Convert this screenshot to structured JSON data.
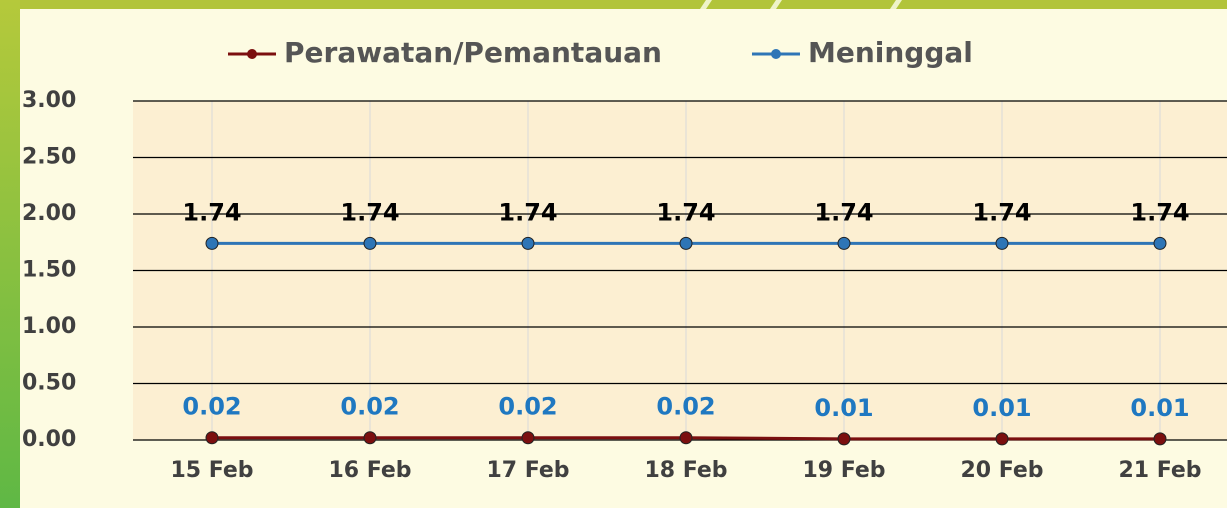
{
  "chart_data": {
    "type": "line",
    "categories": [
      "15 Feb",
      "16 Feb",
      "17 Feb",
      "18 Feb",
      "19 Feb",
      "20 Feb",
      "21 Feb"
    ],
    "series": [
      {
        "name": "Perawatan/Pemantauan",
        "color": "#7b0f0f",
        "label_color": "#1f78c1",
        "values": [
          0.02,
          0.02,
          0.02,
          0.02,
          0.01,
          0.01,
          0.01
        ]
      },
      {
        "name": "Meninggal",
        "color": "#2e75b6",
        "label_color": "#000000",
        "values": [
          1.74,
          1.74,
          1.74,
          1.74,
          1.74,
          1.74,
          1.74
        ]
      }
    ],
    "ylim": [
      0,
      3
    ],
    "yticks": [
      {
        "value": 0,
        "label": "0.00"
      },
      {
        "value": 0.5,
        "label": "0.50"
      },
      {
        "value": 1,
        "label": "1.00"
      },
      {
        "value": 1.5,
        "label": "1.50"
      },
      {
        "value": 2,
        "label": "2.00"
      },
      {
        "value": 2.5,
        "label": "2.50"
      },
      {
        "value": 3,
        "label": "3.00"
      }
    ],
    "grid": true,
    "legend": "top"
  }
}
